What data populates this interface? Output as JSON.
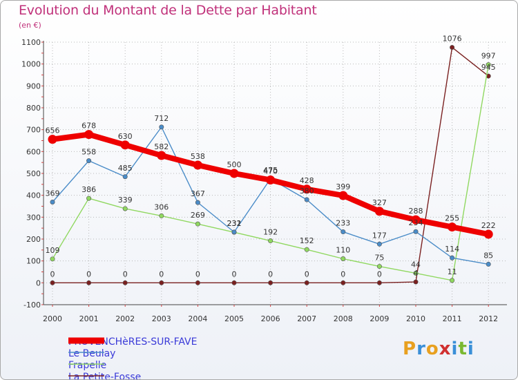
{
  "header": {
    "title": "Evolution du Montant de la Dette par Habitant",
    "subtitle": "(en €)"
  },
  "logo": {
    "text": "Proxiti",
    "colors": [
      "#e8a020",
      "#3a8fd8",
      "#e8a020",
      "#d03030",
      "#3a8fd8",
      "#7ab830",
      "#3a8fd8"
    ]
  },
  "chart_data": {
    "type": "line",
    "title": "Evolution du Montant de la Dette par Habitant",
    "subtitle": "(en €)",
    "xlabel": "",
    "ylabel": "",
    "x": [
      "2000",
      "2001",
      "2002",
      "2003",
      "2004",
      "2005",
      "2006",
      "2007",
      "2008",
      "2009",
      "2010",
      "2011",
      "2012"
    ],
    "ylim": [
      -100,
      1100
    ],
    "yticks": [
      "-100",
      "0",
      "100",
      "200",
      "300",
      "400",
      "500",
      "600",
      "700",
      "800",
      "900",
      "1000",
      "1100"
    ],
    "legend_position": "bottom-left",
    "grid": true,
    "series": [
      {
        "name": "PROVENCHèRES-SUR-FAVE",
        "color": "#ee0000",
        "values": [
          656,
          678,
          630,
          582,
          538,
          500,
          470,
          428,
          399,
          327,
          288,
          255,
          222
        ],
        "labels": [
          "656",
          "678",
          "630",
          "582",
          "538",
          "500",
          "470",
          "428",
          "399",
          "327",
          "288",
          "255",
          "222"
        ]
      },
      {
        "name": "Le Beulay",
        "color": "#4a8cc8",
        "values": [
          369,
          558,
          485,
          712,
          367,
          232,
          475,
          380,
          233,
          177,
          234,
          114,
          85
        ],
        "labels": [
          "369",
          "558",
          "485",
          "712",
          "367",
          "232",
          "475",
          "380",
          "233",
          "177",
          "234",
          "114",
          "85"
        ]
      },
      {
        "name": "Frapelle",
        "color": "#90d860",
        "values": [
          109,
          386,
          339,
          306,
          269,
          231,
          192,
          152,
          110,
          75,
          44,
          11,
          997
        ],
        "labels": [
          "109",
          "386",
          "339",
          "306",
          "269",
          "231",
          "192",
          "152",
          "110",
          "75",
          "44",
          "11",
          "997"
        ]
      },
      {
        "name": "La Petite-Fosse",
        "color": "#7a2020",
        "values": [
          0,
          0,
          0,
          0,
          0,
          0,
          0,
          0,
          0,
          0,
          4,
          1076,
          945
        ],
        "labels": [
          "0",
          "0",
          "0",
          "0",
          "0",
          "0",
          "0",
          "0",
          "0",
          "0",
          "4",
          "1076",
          "945"
        ]
      }
    ]
  }
}
